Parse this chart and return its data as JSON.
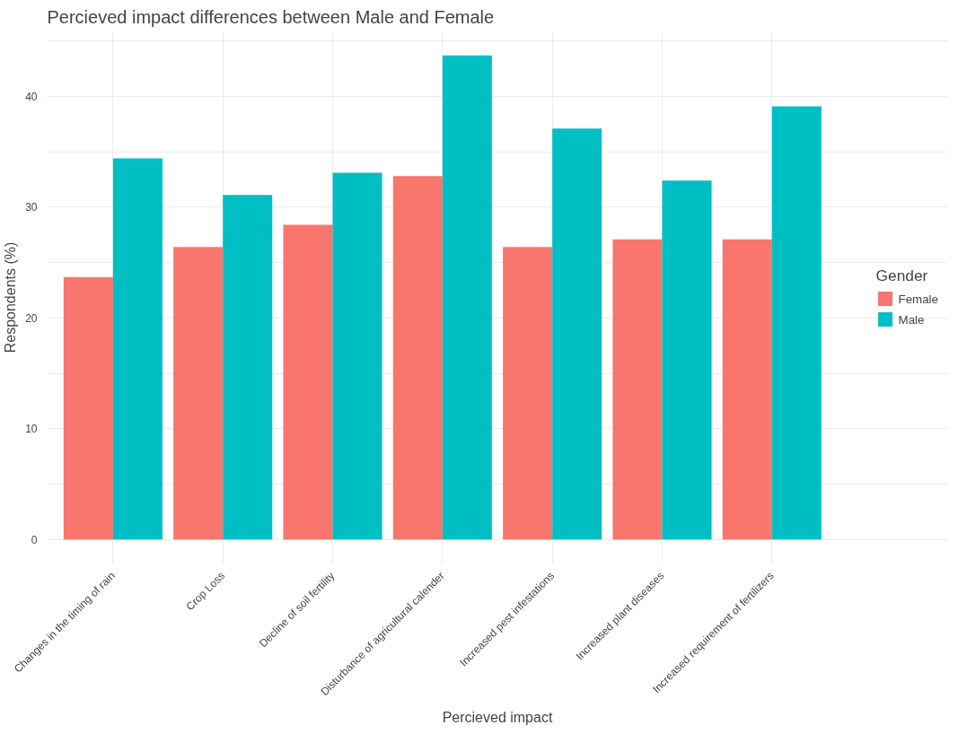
{
  "chart_data": {
    "type": "bar",
    "title": "Percieved impact differences between Male and Female",
    "xlabel": "Percieved impact",
    "ylabel": "Respondents (%)",
    "legend_title": "Gender",
    "categories": [
      "Changes in the timing of rain",
      "Crop Loss",
      "Decline of soil fertility",
      "Disturbance of agricultural calender",
      "Increased pest infestations",
      "Increased plant diseases",
      "Increased requirement of fertilizers"
    ],
    "series": [
      {
        "name": "Female",
        "color": "#f8766d",
        "values": [
          23.7,
          26.4,
          28.4,
          32.8,
          26.4,
          27.1,
          27.1
        ]
      },
      {
        "name": "Male",
        "color": "#00bfc4",
        "values": [
          34.4,
          31.1,
          33.1,
          43.7,
          37.1,
          32.4,
          39.1
        ]
      }
    ],
    "ylim": [
      -2.2,
      45.9
    ],
    "yticks": [
      0,
      {
        "value": 5,
        "label": null
      },
      10,
      {
        "value": 15,
        "label": null
      },
      20,
      {
        "value": 25,
        "label": null
      },
      30,
      {
        "value": 35,
        "label": null
      },
      40,
      {
        "value": 45,
        "label": null
      }
    ],
    "grid": true,
    "legend": "right"
  }
}
